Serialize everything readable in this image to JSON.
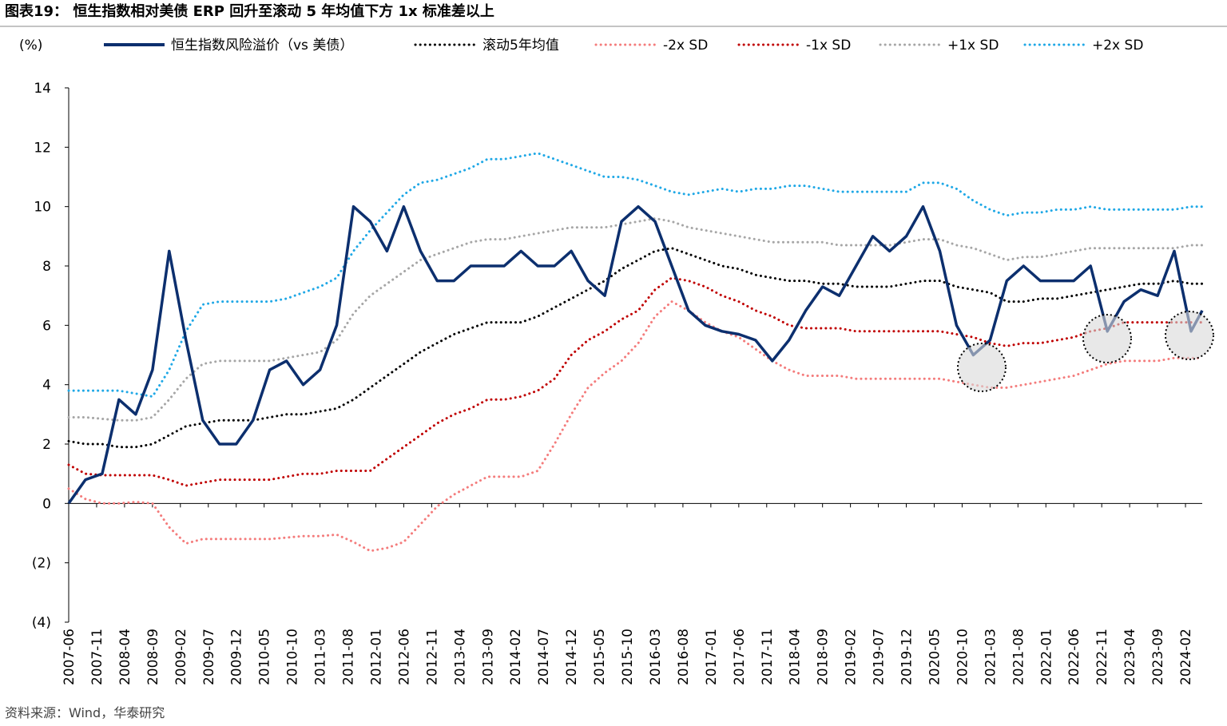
{
  "chart_data": {
    "type": "line",
    "title": "图表19：  恒生指数相对美债 ERP 回升至滚动 5 年均值下方 1x 标准差以上",
    "y_label": "(%)",
    "source": "资料来源：Wind，华泰研究",
    "x": [
      "2007-06",
      "2007-09",
      "2007-12",
      "2008-03",
      "2008-06",
      "2008-09",
      "2008-12",
      "2009-03",
      "2009-06",
      "2009-09",
      "2009-12",
      "2010-03",
      "2010-06",
      "2010-09",
      "2010-12",
      "2011-03",
      "2011-06",
      "2011-09",
      "2011-12",
      "2012-03",
      "2012-06",
      "2012-09",
      "2012-12",
      "2013-03",
      "2013-06",
      "2013-09",
      "2013-12",
      "2014-03",
      "2014-06",
      "2014-09",
      "2014-12",
      "2015-03",
      "2015-06",
      "2015-09",
      "2015-12",
      "2016-03",
      "2016-06",
      "2016-09",
      "2016-12",
      "2017-03",
      "2017-06",
      "2017-09",
      "2017-12",
      "2018-03",
      "2018-06",
      "2018-09",
      "2018-12",
      "2019-03",
      "2019-06",
      "2019-09",
      "2019-12",
      "2020-03",
      "2020-06",
      "2020-09",
      "2020-12",
      "2021-03",
      "2021-06",
      "2021-09",
      "2021-12",
      "2022-03",
      "2022-06",
      "2022-09",
      "2022-12",
      "2023-03",
      "2023-06",
      "2023-09",
      "2023-12",
      "2024-03",
      "2024-05"
    ],
    "xlim": [
      "2007-06",
      "2024-05"
    ],
    "xticks": [
      "2007-06",
      "2007-11",
      "2008-04",
      "2008-09",
      "2009-02",
      "2009-07",
      "2009-12",
      "2010-05",
      "2010-10",
      "2011-03",
      "2011-08",
      "2012-01",
      "2012-06",
      "2012-11",
      "2013-04",
      "2013-09",
      "2014-02",
      "2014-07",
      "2014-12",
      "2015-05",
      "2015-10",
      "2016-03",
      "2016-08",
      "2017-01",
      "2017-06",
      "2017-11",
      "2018-04",
      "2018-09",
      "2019-02",
      "2019-07",
      "2019-12",
      "2020-05",
      "2020-10",
      "2021-03",
      "2021-08",
      "2022-01",
      "2022-06",
      "2022-11",
      "2023-04",
      "2023-09",
      "2024-02"
    ],
    "ylim": [
      -4,
      14
    ],
    "yticks": [
      14,
      12,
      10,
      8,
      6,
      4,
      2,
      0,
      {
        "value": -2,
        "label": "(2)"
      },
      {
        "value": -4,
        "label": "(4)"
      }
    ],
    "grid": false,
    "series": [
      {
        "name": "恒生指数风险溢价（vs 美债）",
        "color": "#0c2f6e",
        "style": "solid",
        "values": [
          0,
          0.8,
          1.0,
          3.5,
          3.0,
          4.5,
          8.5,
          5.5,
          2.8,
          2.0,
          2.0,
          2.8,
          4.5,
          4.8,
          4.0,
          4.5,
          6.0,
          10.0,
          9.5,
          8.5,
          10.0,
          8.5,
          7.5,
          7.5,
          8.0,
          8.0,
          8.0,
          8.5,
          8.0,
          8.0,
          8.5,
          7.5,
          7.0,
          9.5,
          10.0,
          9.5,
          8.0,
          6.5,
          6.0,
          5.8,
          5.7,
          5.5,
          4.8,
          5.5,
          6.5,
          7.3,
          7.0,
          8.0,
          9.0,
          8.5,
          9.0,
          10.0,
          8.5,
          6.0,
          5.0,
          5.5,
          7.5,
          8.0,
          7.5,
          7.5,
          7.5,
          8.0,
          5.8,
          6.8,
          7.2,
          7.0,
          8.5,
          5.8,
          6.5
        ]
      },
      {
        "name": "滚动5年均值",
        "color": "#000000",
        "style": "dotted",
        "values": [
          2.1,
          2.0,
          2.0,
          1.9,
          1.9,
          2.0,
          2.3,
          2.6,
          2.7,
          2.8,
          2.8,
          2.8,
          2.9,
          3.0,
          3.0,
          3.1,
          3.2,
          3.5,
          3.9,
          4.3,
          4.7,
          5.1,
          5.4,
          5.7,
          5.9,
          6.1,
          6.1,
          6.1,
          6.3,
          6.6,
          6.9,
          7.2,
          7.5,
          7.9,
          8.2,
          8.5,
          8.6,
          8.4,
          8.2,
          8.0,
          7.9,
          7.7,
          7.6,
          7.5,
          7.5,
          7.4,
          7.4,
          7.3,
          7.3,
          7.3,
          7.4,
          7.5,
          7.5,
          7.3,
          7.2,
          7.1,
          6.8,
          6.8,
          6.9,
          6.9,
          7.0,
          7.1,
          7.2,
          7.3,
          7.4,
          7.4,
          7.5,
          7.4,
          7.4
        ]
      },
      {
        "name": "-2x SD",
        "color": "#f47c7c",
        "style": "dotted",
        "values": [
          0.5,
          0.15,
          0.0,
          0.0,
          0.05,
          0.0,
          -0.8,
          -1.35,
          -1.2,
          -1.2,
          -1.2,
          -1.2,
          -1.2,
          -1.15,
          -1.1,
          -1.1,
          -1.05,
          -1.3,
          -1.6,
          -1.5,
          -1.3,
          -0.7,
          -0.1,
          0.3,
          0.6,
          0.9,
          0.9,
          0.9,
          1.1,
          2.0,
          3.0,
          3.9,
          4.4,
          4.8,
          5.4,
          6.3,
          6.8,
          6.5,
          6.1,
          5.8,
          5.6,
          5.2,
          4.8,
          4.5,
          4.3,
          4.3,
          4.3,
          4.2,
          4.2,
          4.2,
          4.2,
          4.2,
          4.2,
          4.1,
          4.0,
          3.9,
          3.9,
          4.0,
          4.1,
          4.2,
          4.3,
          4.5,
          4.7,
          4.8,
          4.8,
          4.8,
          4.9,
          4.9,
          4.9
        ]
      },
      {
        "name": "-1x SD",
        "color": "#c00000",
        "style": "dotted",
        "values": [
          1.3,
          1.0,
          0.95,
          0.95,
          0.95,
          0.95,
          0.8,
          0.6,
          0.7,
          0.8,
          0.8,
          0.8,
          0.8,
          0.9,
          1.0,
          1.0,
          1.1,
          1.1,
          1.1,
          1.5,
          1.9,
          2.3,
          2.7,
          3.0,
          3.2,
          3.5,
          3.5,
          3.6,
          3.8,
          4.2,
          5.0,
          5.5,
          5.8,
          6.2,
          6.5,
          7.2,
          7.6,
          7.5,
          7.3,
          7.0,
          6.8,
          6.5,
          6.3,
          6.0,
          5.9,
          5.9,
          5.9,
          5.8,
          5.8,
          5.8,
          5.8,
          5.8,
          5.8,
          5.7,
          5.6,
          5.4,
          5.3,
          5.4,
          5.4,
          5.5,
          5.6,
          5.8,
          5.9,
          6.1,
          6.1,
          6.1,
          6.1,
          6.1,
          6.1
        ]
      },
      {
        "name": "+1x SD",
        "color": "#a6a6a6",
        "style": "dotted",
        "values": [
          2.9,
          2.9,
          2.85,
          2.8,
          2.8,
          2.9,
          3.5,
          4.2,
          4.7,
          4.8,
          4.8,
          4.8,
          4.8,
          4.9,
          5.0,
          5.1,
          5.5,
          6.4,
          7.0,
          7.4,
          7.8,
          8.2,
          8.4,
          8.6,
          8.8,
          8.9,
          8.9,
          9.0,
          9.1,
          9.2,
          9.3,
          9.3,
          9.3,
          9.4,
          9.5,
          9.6,
          9.5,
          9.3,
          9.2,
          9.1,
          9.0,
          8.9,
          8.8,
          8.8,
          8.8,
          8.8,
          8.7,
          8.7,
          8.7,
          8.7,
          8.8,
          8.9,
          8.9,
          8.7,
          8.6,
          8.4,
          8.2,
          8.3,
          8.3,
          8.4,
          8.5,
          8.6,
          8.6,
          8.6,
          8.6,
          8.6,
          8.6,
          8.7,
          8.7
        ]
      },
      {
        "name": "+2x SD",
        "color": "#1fa8e6",
        "style": "dotted",
        "values": [
          3.8,
          3.8,
          3.8,
          3.8,
          3.7,
          3.6,
          4.5,
          5.8,
          6.7,
          6.8,
          6.8,
          6.8,
          6.8,
          6.9,
          7.1,
          7.3,
          7.6,
          8.5,
          9.2,
          9.8,
          10.4,
          10.8,
          10.9,
          11.1,
          11.3,
          11.6,
          11.6,
          11.7,
          11.8,
          11.6,
          11.4,
          11.2,
          11.0,
          11.0,
          10.9,
          10.7,
          10.5,
          10.4,
          10.5,
          10.6,
          10.5,
          10.6,
          10.6,
          10.7,
          10.7,
          10.6,
          10.5,
          10.5,
          10.5,
          10.5,
          10.5,
          10.8,
          10.8,
          10.6,
          10.2,
          9.9,
          9.7,
          9.8,
          9.8,
          9.9,
          9.9,
          10.0,
          9.9,
          9.9,
          9.9,
          9.9,
          9.9,
          10.0,
          10.0
        ]
      }
    ]
  }
}
